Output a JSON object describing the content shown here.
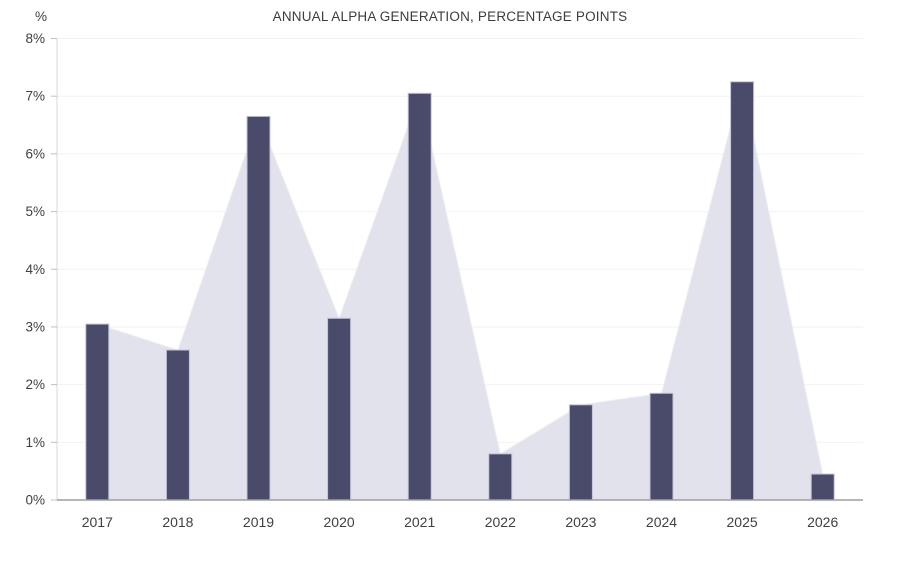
{
  "chart_data": {
    "type": "bar",
    "title": "ANNUAL ALPHA GENERATION, PERCENTAGE POINTS",
    "y_unit_label": "%",
    "categories": [
      "2017",
      "2018",
      "2019",
      "2020",
      "2021",
      "2022",
      "2023",
      "2024",
      "2025",
      "2026"
    ],
    "series": [
      {
        "name": "annual-alpha-bars",
        "type": "bar",
        "values": [
          3.05,
          2.6,
          6.65,
          3.15,
          7.05,
          0.8,
          1.65,
          1.85,
          7.25,
          0.45
        ]
      },
      {
        "name": "annual-alpha-area",
        "type": "area",
        "values": [
          3.05,
          2.6,
          6.65,
          3.15,
          7.05,
          0.8,
          1.65,
          1.85,
          7.25,
          0.45
        ]
      }
    ],
    "ylim": [
      0,
      8
    ],
    "yticks": [
      0,
      1,
      2,
      3,
      4,
      5,
      6,
      7,
      8
    ],
    "ytick_labels": [
      "0%",
      "1%",
      "2%",
      "3%",
      "4%",
      "5%",
      "6%",
      "7%",
      "8%"
    ],
    "grid": true,
    "legend_position": "none"
  },
  "style": {
    "bar_color": "#4A4A6A",
    "bar_border_color": "#C4C4D8",
    "area_color": "#E2E2EC",
    "area_edge_color": "#EFEFF5",
    "grid_color": "#F2F2F2",
    "y_axis_color": "#D9D9D9",
    "tick_color": "#BFBFBF",
    "baseline_color": "#9E9E9E",
    "text_color": "#404040"
  }
}
